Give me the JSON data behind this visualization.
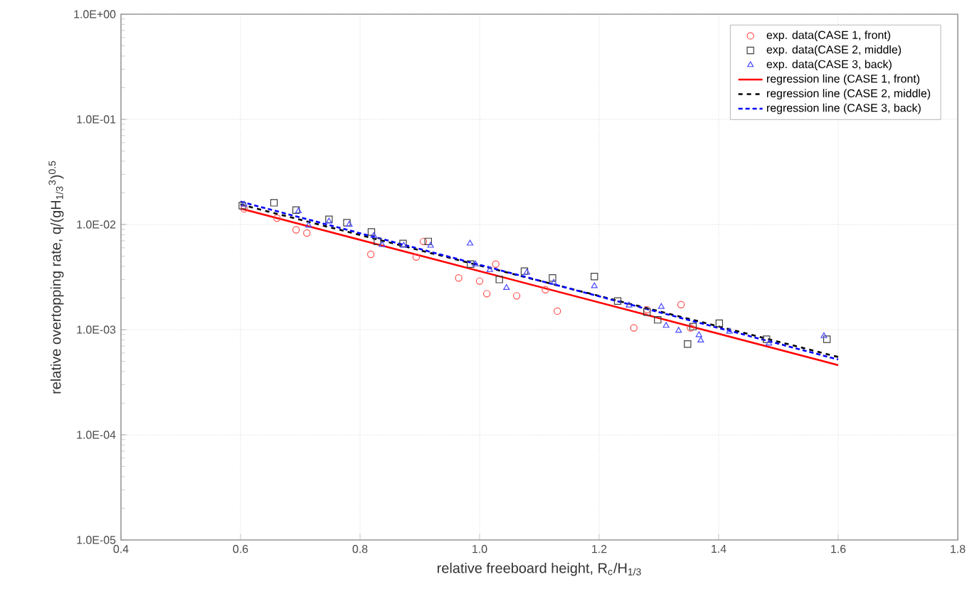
{
  "chart_data": {
    "type": "scatter",
    "xlabel": "relative freeboard height, R$_{c}$/H$_{1/3}$",
    "ylabel": "relative overtopping rate, q/(gH$_{1/3}$$^{3}$)$^{0.5}$",
    "log": "y",
    "grid": true,
    "legend": "top right",
    "xlim": [
      0.4,
      1.8
    ],
    "ylim": [
      1e-05,
      1
    ],
    "xticks": [
      0.4,
      0.6,
      0.8,
      {
        "value": 1.0,
        "label": "1.0"
      },
      1.2,
      1.4,
      1.6,
      1.8
    ],
    "yticks": [
      {
        "value": 1e-05,
        "label": "1.0E-05"
      },
      {
        "value": 0.0001,
        "label": "1.0E-04"
      },
      {
        "value": 0.001,
        "label": "1.0E-03"
      },
      {
        "value": 0.01,
        "label": "1.0E-02"
      },
      {
        "value": 0.1,
        "label": "1.0E-01"
      },
      {
        "value": 1,
        "label": "1.0E+00"
      }
    ],
    "series": [
      {
        "name": "exp.  data(CASE 1, front)",
        "marker": "circle",
        "color": "#ff5050",
        "x": [
          0.606,
          0.661,
          0.693,
          0.711,
          0.818,
          0.894,
          0.906,
          0.965,
          1.0,
          1.012,
          1.027,
          1.062,
          1.11,
          1.13,
          1.258,
          1.28,
          1.337,
          1.353
        ],
        "values": [
          0.0141,
          0.0115,
          0.0089,
          0.0083,
          0.0052,
          0.0049,
          0.0069,
          0.0031,
          0.0029,
          0.0022,
          0.0042,
          0.0021,
          0.0024,
          0.0015,
          0.00104,
          0.00155,
          0.00173,
          0.00104
        ]
      },
      {
        "name": "exp.  data(CASE 2, middle)",
        "marker": "square",
        "color": "#404040",
        "x": [
          0.603,
          0.656,
          0.693,
          0.748,
          0.778,
          0.819,
          0.829,
          0.872,
          0.914,
          0.985,
          1.033,
          1.075,
          1.122,
          1.192,
          1.231,
          1.28,
          1.298,
          1.348,
          1.357,
          1.401,
          1.48,
          1.581
        ],
        "values": [
          0.0151,
          0.0161,
          0.0137,
          0.0112,
          0.0104,
          0.0085,
          0.0069,
          0.0066,
          0.0069,
          0.0042,
          0.003,
          0.0036,
          0.0031,
          0.0032,
          0.00187,
          0.00147,
          0.00124,
          0.00073,
          0.00107,
          0.00115,
          0.00081,
          0.00081
        ]
      },
      {
        "name": "exp.  data(CASE 3, back)",
        "marker": "triangle",
        "color": "#4848ff",
        "x": [
          0.606,
          0.697,
          0.714,
          0.748,
          0.782,
          0.823,
          0.837,
          0.873,
          0.918,
          0.984,
          0.993,
          1.017,
          1.045,
          1.079,
          1.124,
          1.192,
          1.25,
          1.304,
          1.312,
          1.333,
          1.367,
          1.37,
          1.418,
          1.484,
          1.576
        ],
        "values": [
          0.0155,
          0.0134,
          0.0098,
          0.0107,
          0.01,
          0.0078,
          0.0064,
          0.0063,
          0.0063,
          0.0066,
          0.0042,
          0.0037,
          0.0025,
          0.0035,
          0.0028,
          0.0026,
          0.0017,
          0.00165,
          0.00109,
          0.00098,
          0.00089,
          0.00079,
          0.00096,
          0.00074,
          0.00087
        ]
      },
      {
        "name": "regression line (CASE 1, front)",
        "type": "line",
        "line_style": "solid",
        "color": "#ff0000",
        "x": [
          0.6,
          1.6
        ],
        "values": [
          0.0142,
          0.00046
        ]
      },
      {
        "name": "regression line (CASE 2, middle)",
        "type": "line",
        "line_style": "dashed",
        "color": "#000000",
        "x": [
          0.6,
          1.6
        ],
        "values": [
          0.0155,
          0.00055
        ]
      },
      {
        "name": "regression line (CASE 3, back)",
        "type": "line",
        "line_style": "densely dashed",
        "color": "#0000ff",
        "x": [
          0.6,
          1.6
        ],
        "values": [
          0.0165,
          0.00052
        ]
      }
    ]
  }
}
